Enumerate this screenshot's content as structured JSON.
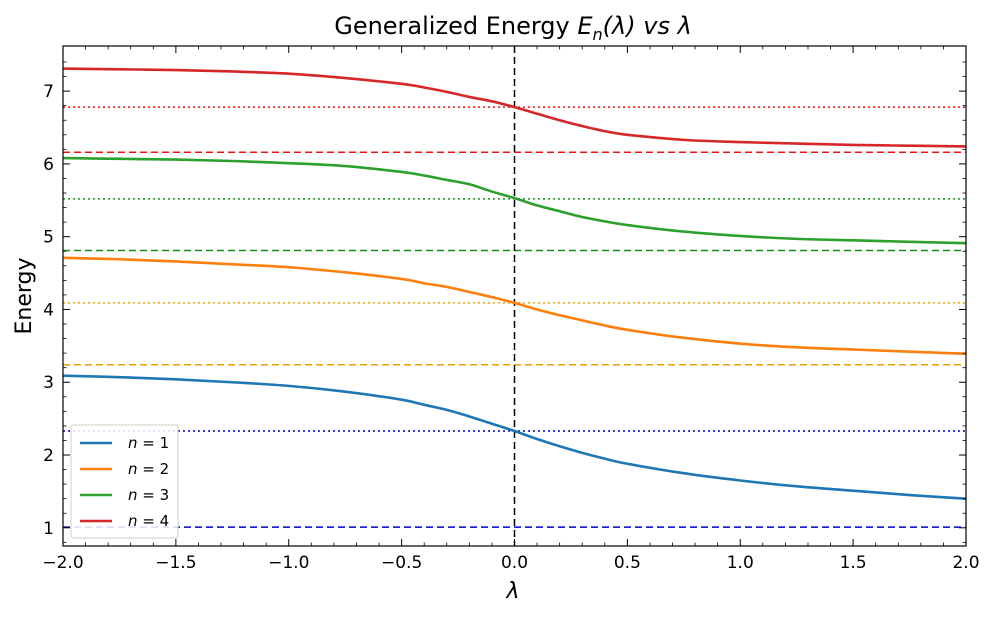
{
  "chart_data": {
    "type": "line",
    "title": "Generalized Energy E_n(λ) vs λ",
    "title_parts": {
      "prefix": "Generalized Energy ",
      "symbol": "E",
      "subscript": "n",
      "argument": "(λ)",
      "suffix": " vs λ"
    },
    "xlabel": "λ",
    "ylabel": "Energy",
    "xlim": [
      -2.0,
      2.0
    ],
    "ylim": [
      0.75,
      7.62
    ],
    "x_ticks": [
      -2.0,
      -1.5,
      -1.0,
      -0.5,
      0.0,
      0.5,
      1.0,
      1.5,
      2.0
    ],
    "x_tick_labels": [
      "−2.0",
      "−1.5",
      "−1.0",
      "−0.5",
      "0.0",
      "0.5",
      "1.0",
      "1.5",
      "2.0"
    ],
    "y_ticks": [
      1,
      2,
      3,
      4,
      5,
      6,
      7
    ],
    "y_tick_labels": [
      "1",
      "2",
      "3",
      "4",
      "5",
      "6",
      "7"
    ],
    "x": [
      -2.0,
      -1.75,
      -1.5,
      -1.25,
      -1.0,
      -0.75,
      -0.5,
      -0.4,
      -0.3,
      -0.2,
      -0.1,
      0.0,
      0.1,
      0.2,
      0.3,
      0.4,
      0.5,
      0.75,
      1.0,
      1.25,
      1.5,
      1.75,
      2.0
    ],
    "series": [
      {
        "name": "n = 1",
        "color": "#1f77b4",
        "values": [
          3.09,
          3.07,
          3.04,
          3.0,
          2.95,
          2.87,
          2.76,
          2.69,
          2.62,
          2.53,
          2.43,
          2.33,
          2.22,
          2.12,
          2.03,
          1.95,
          1.88,
          1.75,
          1.65,
          1.57,
          1.51,
          1.45,
          1.4
        ]
      },
      {
        "name": "n = 2",
        "color": "#ff7f0e",
        "values": [
          4.71,
          4.69,
          4.66,
          4.62,
          4.58,
          4.51,
          4.42,
          4.36,
          4.31,
          4.24,
          4.17,
          4.09,
          4.0,
          3.92,
          3.85,
          3.78,
          3.72,
          3.61,
          3.53,
          3.48,
          3.45,
          3.42,
          3.39
        ]
      },
      {
        "name": "n = 3",
        "color": "#2ca02c",
        "values": [
          6.08,
          6.07,
          6.06,
          6.04,
          6.01,
          5.97,
          5.89,
          5.84,
          5.78,
          5.72,
          5.62,
          5.53,
          5.43,
          5.35,
          5.27,
          5.21,
          5.16,
          5.07,
          5.01,
          4.97,
          4.95,
          4.93,
          4.91
        ]
      },
      {
        "name": "n = 4",
        "color": "#d62728",
        "values": [
          7.31,
          7.3,
          7.29,
          7.27,
          7.24,
          7.18,
          7.1,
          7.05,
          6.99,
          6.92,
          6.86,
          6.78,
          6.69,
          6.6,
          6.52,
          6.45,
          6.4,
          6.33,
          6.3,
          6.28,
          6.26,
          6.25,
          6.24
        ]
      }
    ],
    "reference_lines": [
      {
        "axis": "y",
        "value": 1.01,
        "style": "dashed",
        "color": "#0000cc"
      },
      {
        "axis": "y",
        "value": 2.33,
        "style": "dotted",
        "color": "#0000cc"
      },
      {
        "axis": "y",
        "value": 3.24,
        "style": "dashed",
        "color": "#f0a000"
      },
      {
        "axis": "y",
        "value": 4.09,
        "style": "dotted",
        "color": "#f0a000"
      },
      {
        "axis": "y",
        "value": 4.81,
        "style": "dashed",
        "color": "#1a8a1a"
      },
      {
        "axis": "y",
        "value": 5.52,
        "style": "dotted",
        "color": "#1a8a1a"
      },
      {
        "axis": "y",
        "value": 6.16,
        "style": "dashed",
        "color": "#ee1111"
      },
      {
        "axis": "y",
        "value": 6.78,
        "style": "dotted",
        "color": "#ee1111"
      },
      {
        "axis": "x",
        "value": 0.0,
        "style": "dashed",
        "color": "#000000"
      }
    ],
    "legend": {
      "placement": "lower-left",
      "entries": [
        {
          "prefix": "n",
          "suffix": " = 1",
          "color": "#1f77b4"
        },
        {
          "prefix": "n",
          "suffix": " = 2",
          "color": "#ff7f0e"
        },
        {
          "prefix": "n",
          "suffix": " = 3",
          "color": "#2ca02c"
        },
        {
          "prefix": "n",
          "suffix": " = 4",
          "color": "#d62728"
        }
      ]
    },
    "grid": false
  }
}
